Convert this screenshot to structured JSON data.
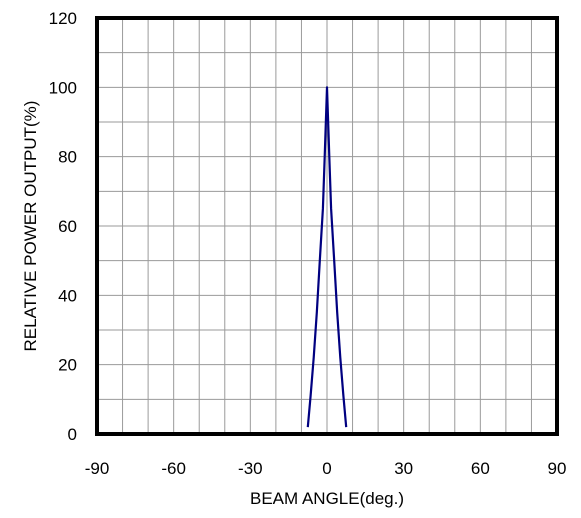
{
  "chart_data": {
    "type": "line",
    "title": "",
    "xlabel": "BEAM ANGLE(deg.)",
    "ylabel": "RELATIVE POWER OUTPUT(%)",
    "xlim": [
      -90,
      90
    ],
    "ylim": [
      0,
      120
    ],
    "xticks": [
      -90,
      -60,
      -30,
      0,
      30,
      60,
      90
    ],
    "yticks": [
      0,
      20,
      40,
      60,
      80,
      100,
      120
    ],
    "x_minor_grid_step": 10,
    "y_grid_step": 10,
    "grid": true,
    "legend": "none",
    "series_color": "#000080",
    "series": [
      {
        "x": [
          -7.5,
          -6.4,
          -5.2,
          -4.0,
          -2.8,
          -1.6,
          -0.9,
          -0.3,
          0,
          0.3,
          0.9,
          1.6,
          2.8,
          4.0,
          5.2,
          6.4,
          7.5
        ],
        "y": [
          2,
          11,
          22,
          35,
          50,
          65,
          80,
          93,
          100,
          93,
          80,
          65,
          50,
          35,
          22,
          11,
          2
        ]
      }
    ]
  }
}
